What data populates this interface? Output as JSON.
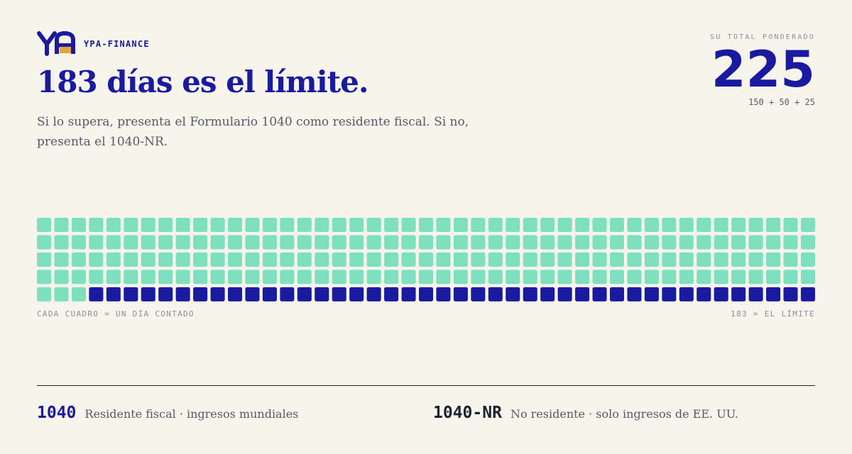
{
  "brand": "YPA-FINANCE",
  "title": "183 días es el límite.",
  "subtitle_lines": [
    "Si lo supera, presenta el Formulario 1040 como residente fiscal. Si no,",
    "presenta el 1040-NR."
  ],
  "total": {
    "label": "SU TOTAL PONDERADO",
    "value": 225,
    "breakdown": "150 + 50 + 25"
  },
  "waffle": {
    "limit": 183,
    "rows": 5,
    "under_color": "#7de0be",
    "over_color": "#1a1aa0",
    "caption_left": "CADA CUADRO = UN DÍA CONTADO",
    "caption_right": "183 = EL LÍMITE"
  },
  "forms": [
    {
      "code": "1040",
      "description": "Residente fiscal · ingresos mundiales",
      "color": "#1a1aa0"
    },
    {
      "code": "1040-NR",
      "description": "No residente · solo ingresos de EE. UU.",
      "color": "#1c2230"
    }
  ]
}
